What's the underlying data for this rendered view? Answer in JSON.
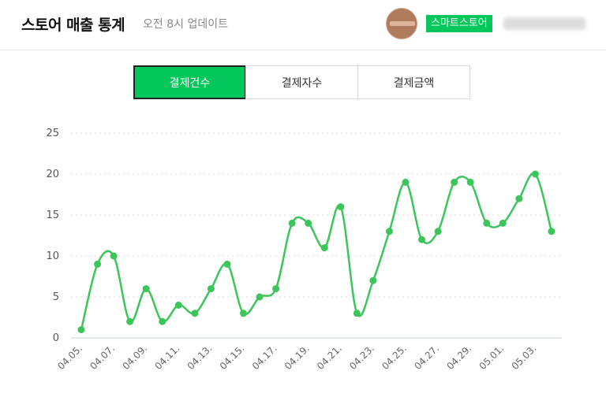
{
  "header": {
    "title": "스토어 매출 통계",
    "subtitle": "오전 8시 업데이트",
    "store_badge": "스마트스토어",
    "avatar_icon": "store-logo-icon",
    "accent_color": "#03c75a"
  },
  "tabs": [
    {
      "label": "결제건수",
      "active": true
    },
    {
      "label": "결제자수",
      "active": false
    },
    {
      "label": "결제금액",
      "active": false
    }
  ],
  "chart_data": {
    "type": "line",
    "title": "",
    "xlabel": "",
    "ylabel": "",
    "ylim": [
      0,
      25
    ],
    "yticks": [
      0,
      5,
      10,
      15,
      20,
      25
    ],
    "grid": true,
    "legend": "none",
    "line_color": "#3cc55a",
    "x": [
      "04.05.",
      "04.06.",
      "04.07.",
      "04.08.",
      "04.09.",
      "04.10.",
      "04.11.",
      "04.12.",
      "04.13.",
      "04.14.",
      "04.15.",
      "04.16.",
      "04.17.",
      "04.18.",
      "04.19.",
      "04.20.",
      "04.21.",
      "04.22.",
      "04.23.",
      "04.24.",
      "04.25.",
      "04.26.",
      "04.27.",
      "04.28.",
      "04.29.",
      "04.30.",
      "05.01.",
      "05.02.",
      "05.03.",
      "05.04."
    ],
    "xtick_labels": [
      "04.05.",
      "04.07.",
      "04.09.",
      "04.11.",
      "04.13.",
      "04.15.",
      "04.17.",
      "04.19.",
      "04.21.",
      "04.23.",
      "04.25.",
      "04.27.",
      "04.29.",
      "05.01.",
      "05.03."
    ],
    "series": [
      {
        "values": [
          1,
          9,
          10,
          2,
          6,
          2,
          4,
          3,
          6,
          9,
          3,
          5,
          6,
          14,
          14,
          11,
          16,
          3,
          7,
          13,
          19,
          12,
          13,
          19,
          19,
          14,
          14,
          17,
          20,
          13
        ]
      }
    ]
  }
}
